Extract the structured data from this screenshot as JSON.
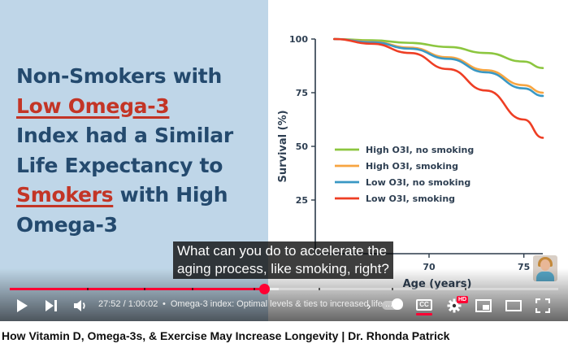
{
  "slide": {
    "headline_lines": [
      "Non-Smokers with",
      "Low Omega-3",
      "Index had a Similar",
      "Life Expectancy to",
      "Smokers",
      " with High",
      "Omega-3"
    ],
    "colors": {
      "panel": "#bfd6e8",
      "headline": "#244a6e",
      "highlight": "#c33526"
    }
  },
  "chart_data": {
    "type": "line",
    "title": "",
    "xlabel": "Age (years)",
    "ylabel": "Survival (%)",
    "xlim": [
      64,
      76
    ],
    "ylim": [
      0,
      100
    ],
    "y_ticks": [
      100,
      75,
      50,
      25
    ],
    "x_ticks": [
      70,
      75
    ],
    "x": [
      65,
      67,
      69,
      71,
      73,
      75,
      76
    ],
    "series": [
      {
        "name": "High O3I, no smoking",
        "color": "#8cc63f",
        "values": [
          100,
          99.4,
          98.2,
          96.3,
          93.5,
          89.5,
          86.5
        ]
      },
      {
        "name": "High O3I, smoking",
        "color": "#f7a541",
        "values": [
          100,
          98.7,
          96,
          91.5,
          85.5,
          78.5,
          75
        ]
      },
      {
        "name": "Low O3I, no smoking",
        "color": "#3a98c4",
        "values": [
          100,
          98.5,
          95.5,
          90.8,
          84.5,
          77,
          73.5
        ]
      },
      {
        "name": "Low O3I, smoking",
        "color": "#ee3e24",
        "values": [
          100,
          97.8,
          93.5,
          86,
          76,
          62.5,
          54
        ]
      }
    ],
    "legend_position": "center",
    "grid": false
  },
  "caption": {
    "line1": "What can you do to accelerate the",
    "line2": "aging process, like smoking, right?"
  },
  "player": {
    "time_text": "27:52 / 1:00:02",
    "chapter_separator": "•",
    "chapter_title": "Omega-3 index: Optimal levels & ties to increased life ...",
    "chapter_chevron": "›",
    "cc_label": "CC",
    "hd_label": "HD",
    "progress_fraction": 0.4643,
    "buffered_fraction": 0.49,
    "accent": "#ff0033"
  },
  "video": {
    "title": "How Vitamin D, Omega-3s, & Exercise May Increase Longevity | Dr. Rhonda Patrick"
  }
}
